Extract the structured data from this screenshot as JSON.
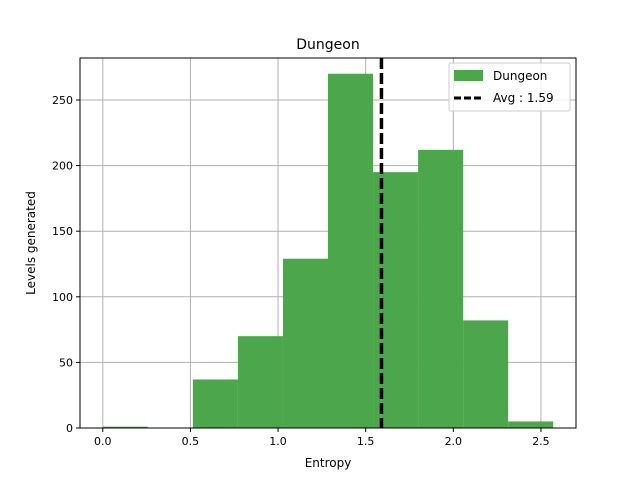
{
  "chart_data": {
    "type": "bar",
    "title": "Dungeon",
    "xlabel": "Entropy",
    "ylabel": "Levels generated",
    "xlim": [
      -0.13,
      2.7
    ],
    "ylim": [
      0,
      282
    ],
    "x_ticks": [
      "0.0",
      "0.5",
      "1.0",
      "1.5",
      "2.0",
      "2.5"
    ],
    "y_ticks": [
      "0",
      "50",
      "100",
      "150",
      "200",
      "250"
    ],
    "grid": true,
    "legend_position": "top-right",
    "bins": [
      {
        "x0": 0.0,
        "x1": 0.257,
        "value": 1
      },
      {
        "x0": 0.257,
        "x1": 0.514,
        "value": 0
      },
      {
        "x0": 0.514,
        "x1": 0.771,
        "value": 37
      },
      {
        "x0": 0.771,
        "x1": 1.028,
        "value": 70
      },
      {
        "x0": 1.028,
        "x1": 1.285,
        "value": 129
      },
      {
        "x0": 1.285,
        "x1": 1.542,
        "value": 270
      },
      {
        "x0": 1.542,
        "x1": 1.799,
        "value": 195
      },
      {
        "x0": 1.799,
        "x1": 2.056,
        "value": 212
      },
      {
        "x0": 2.056,
        "x1": 2.313,
        "value": 82
      },
      {
        "x0": 2.313,
        "x1": 2.57,
        "value": 5
      }
    ],
    "series": [
      {
        "name": "Dungeon",
        "color": "#4ca64c"
      }
    ],
    "avg_line": {
      "value": 1.59,
      "label": "Avg : 1.59",
      "color": "#000000"
    }
  }
}
